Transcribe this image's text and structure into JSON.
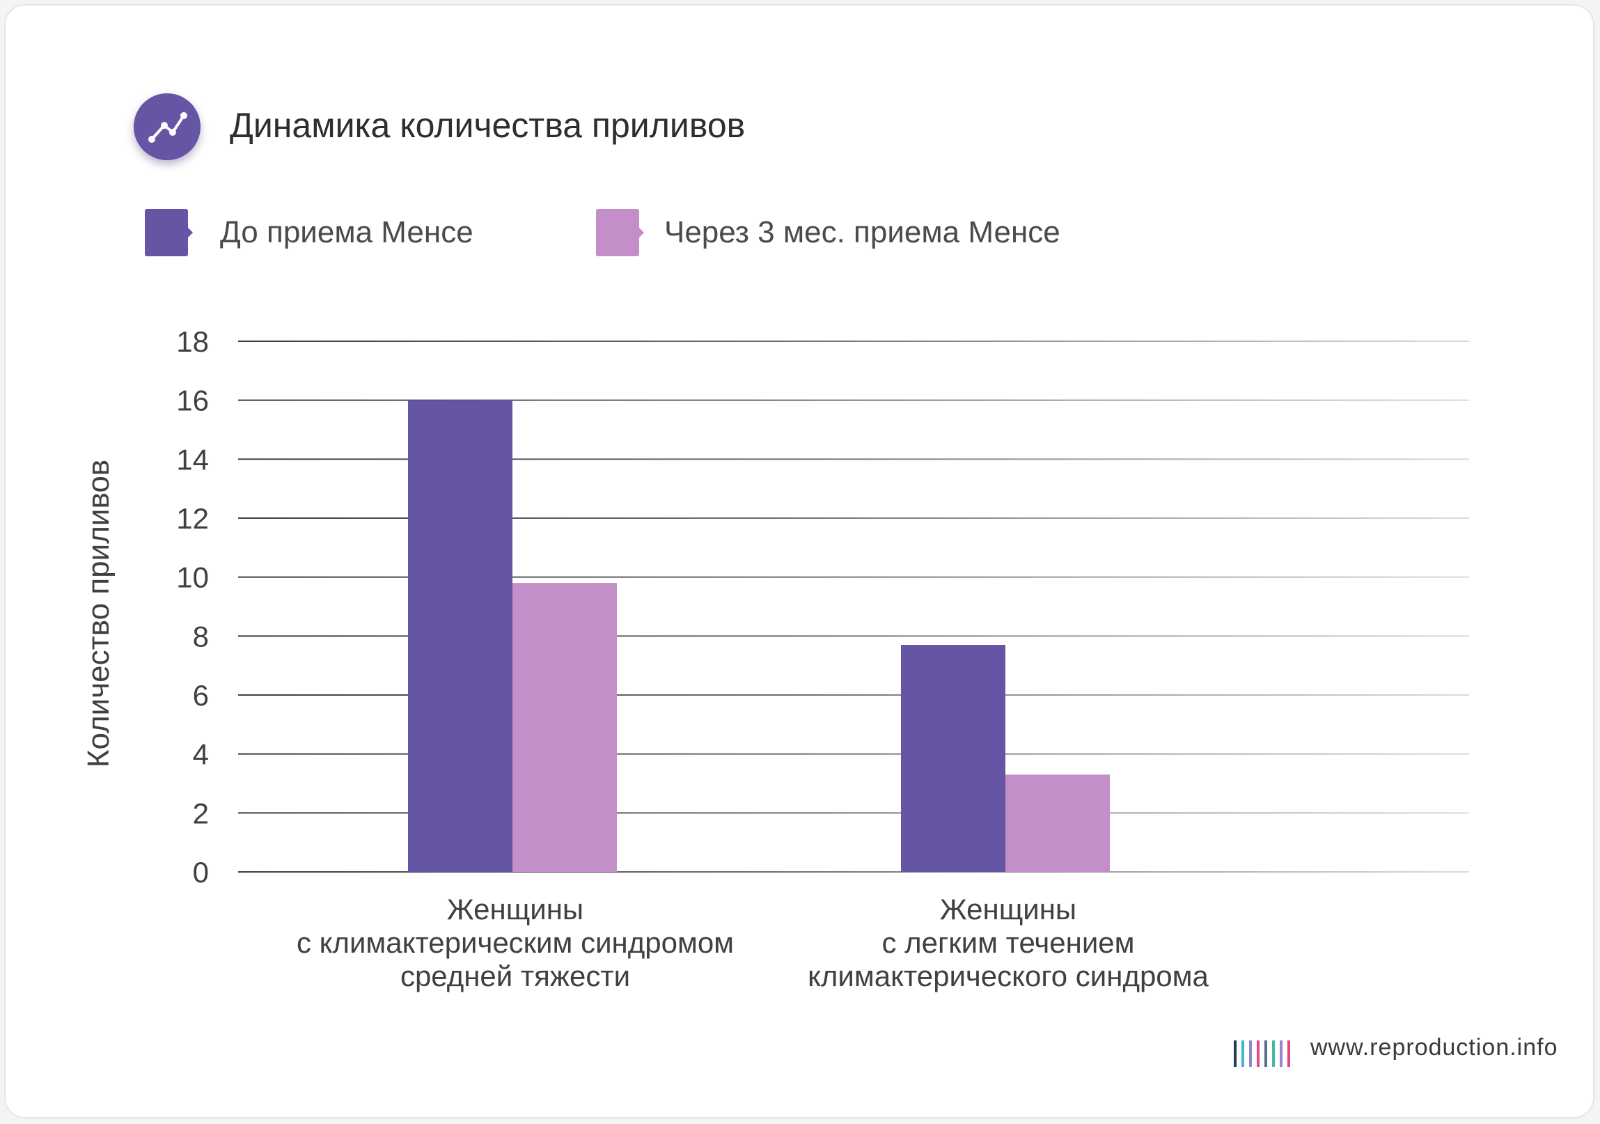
{
  "header": {
    "title": "Динамика количества приливов",
    "icon": "trend-line-icon"
  },
  "legend": {
    "items": [
      {
        "label": "До приема Менсе",
        "color": "#6654a4"
      },
      {
        "label": "Через 3 мес. приема Менсе",
        "color": "#c48ec8"
      }
    ]
  },
  "chart_data": {
    "type": "bar",
    "title": "Динамика количества приливов",
    "xlabel": "",
    "ylabel": "Количество приливов",
    "ylim": [
      0,
      18
    ],
    "yticks": [
      0,
      2,
      4,
      6,
      8,
      10,
      12,
      14,
      16,
      18
    ],
    "grid": true,
    "legend_position": "top-left",
    "categories": [
      [
        "Женщины",
        "с климактерическим синдромом",
        "средней тяжести"
      ],
      [
        "Женщины",
        "с легким течением",
        "климактерического синдрома"
      ]
    ],
    "series": [
      {
        "name": "До приема Менсе",
        "values": [
          16,
          7.7
        ],
        "color": "#6654a4"
      },
      {
        "name": "Через 3 мес. приема Менсе",
        "values": [
          9.8,
          3.3
        ],
        "color": "#c48ec8"
      }
    ]
  },
  "footer": {
    "url": "www.reproduction.info",
    "logo_colors": [
      "#1f3b57",
      "#3fb6c8",
      "#8c8ad0",
      "#e04a8a",
      "#5c6c8c",
      "#47b8a6",
      "#9a86d0",
      "#e8457a"
    ]
  }
}
